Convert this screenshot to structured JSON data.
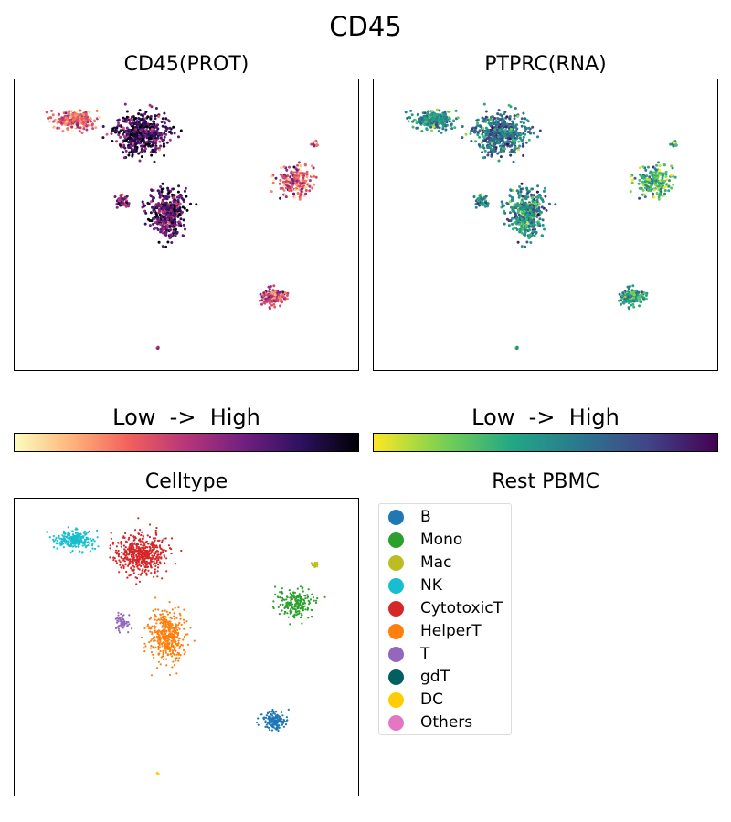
{
  "figure": {
    "title": "CD45"
  },
  "panels": {
    "prot": {
      "title": "CD45(PROT)",
      "colormap": "magma"
    },
    "rna": {
      "title": "PTPRC(RNA)",
      "colormap": "viridis"
    },
    "celltype": {
      "title": "Celltype"
    },
    "legend_title": "Rest PBMC"
  },
  "colorbars": {
    "prot": {
      "label": "Low  ->  High"
    },
    "rna": {
      "label": "Low  ->  High"
    }
  },
  "colors": {
    "B": "#1f77b4",
    "Mono": "#2ca02c",
    "Mac": "#bcbd22",
    "NK": "#17becf",
    "CytotoxicT": "#d62728",
    "HelperT": "#ff7f0e",
    "T": "#9467bd",
    "gdT": "#006060",
    "DC": "#ffcc00",
    "Others": "#e377c2"
  },
  "chart_data": [
    {
      "type": "scatter",
      "title": "CD45(PROT)",
      "xlabel": "",
      "ylabel": "",
      "grid": false,
      "color_scale": "magma",
      "clusters": [
        {
          "cell_type": "NK",
          "center": [
            1.5,
            8.9
          ],
          "spread": [
            0.55,
            0.32
          ],
          "count": 260,
          "expression_level": 0.35
        },
        {
          "cell_type": "CytotoxicT",
          "center": [
            3.6,
            8.4
          ],
          "spread": [
            0.75,
            0.7
          ],
          "count": 520,
          "expression_level": 0.8
        },
        {
          "cell_type": "T",
          "center": [
            3.0,
            5.9
          ],
          "spread": [
            0.2,
            0.3
          ],
          "count": 60,
          "expression_level": 0.6
        },
        {
          "cell_type": "HelperT",
          "center": [
            4.4,
            5.4
          ],
          "spread": [
            0.55,
            0.9
          ],
          "count": 420,
          "expression_level": 0.75
        },
        {
          "cell_type": "Mono",
          "center": [
            8.4,
            6.6
          ],
          "spread": [
            0.55,
            0.55
          ],
          "count": 200,
          "expression_level": 0.4
        },
        {
          "cell_type": "Mac",
          "center": [
            9.0,
            8.0
          ],
          "spread": [
            0.08,
            0.12
          ],
          "count": 18,
          "expression_level": 0.3
        },
        {
          "cell_type": "B",
          "center": [
            7.7,
            2.3
          ],
          "spread": [
            0.38,
            0.32
          ],
          "count": 150,
          "expression_level": 0.45
        },
        {
          "cell_type": "DC",
          "center": [
            4.1,
            0.4
          ],
          "spread": [
            0.04,
            0.05
          ],
          "count": 6,
          "expression_level": 0.4
        }
      ]
    },
    {
      "type": "scatter",
      "title": "PTPRC(RNA)",
      "xlabel": "",
      "ylabel": "",
      "grid": false,
      "color_scale": "viridis",
      "clusters": [
        {
          "cell_type": "NK",
          "center": [
            1.5,
            8.9
          ],
          "spread": [
            0.55,
            0.32
          ],
          "count": 260,
          "expression_level": 0.5
        },
        {
          "cell_type": "CytotoxicT",
          "center": [
            3.6,
            8.4
          ],
          "spread": [
            0.75,
            0.7
          ],
          "count": 520,
          "expression_level": 0.6
        },
        {
          "cell_type": "T",
          "center": [
            3.0,
            5.9
          ],
          "spread": [
            0.2,
            0.3
          ],
          "count": 60,
          "expression_level": 0.5
        },
        {
          "cell_type": "HelperT",
          "center": [
            4.4,
            5.4
          ],
          "spread": [
            0.55,
            0.9
          ],
          "count": 420,
          "expression_level": 0.5
        },
        {
          "cell_type": "Mono",
          "center": [
            8.4,
            6.6
          ],
          "spread": [
            0.55,
            0.55
          ],
          "count": 200,
          "expression_level": 0.35
        },
        {
          "cell_type": "Mac",
          "center": [
            9.0,
            8.0
          ],
          "spread": [
            0.08,
            0.12
          ],
          "count": 18,
          "expression_level": 0.3
        },
        {
          "cell_type": "B",
          "center": [
            7.7,
            2.3
          ],
          "spread": [
            0.38,
            0.32
          ],
          "count": 150,
          "expression_level": 0.45
        },
        {
          "cell_type": "DC",
          "center": [
            4.1,
            0.4
          ],
          "spread": [
            0.04,
            0.05
          ],
          "count": 6,
          "expression_level": 0.3
        }
      ]
    },
    {
      "type": "scatter",
      "title": "Celltype",
      "xlabel": "",
      "ylabel": "",
      "grid": false,
      "legend": {
        "title": "Rest PBMC",
        "position": "right",
        "entries": [
          "B",
          "Mono",
          "Mac",
          "NK",
          "CytotoxicT",
          "HelperT",
          "T",
          "gdT",
          "DC",
          "Others"
        ]
      },
      "clusters": [
        {
          "cell_type": "NK",
          "center": [
            1.5,
            8.9
          ],
          "spread": [
            0.55,
            0.32
          ],
          "count": 260
        },
        {
          "cell_type": "CytotoxicT",
          "center": [
            3.6,
            8.4
          ],
          "spread": [
            0.75,
            0.7
          ],
          "count": 520
        },
        {
          "cell_type": "T",
          "center": [
            3.0,
            5.9
          ],
          "spread": [
            0.2,
            0.3
          ],
          "count": 60
        },
        {
          "cell_type": "HelperT",
          "center": [
            4.4,
            5.4
          ],
          "spread": [
            0.55,
            0.9
          ],
          "count": 420
        },
        {
          "cell_type": "Mono",
          "center": [
            8.4,
            6.6
          ],
          "spread": [
            0.55,
            0.55
          ],
          "count": 200
        },
        {
          "cell_type": "Mac",
          "center": [
            9.0,
            8.0
          ],
          "spread": [
            0.08,
            0.12
          ],
          "count": 18
        },
        {
          "cell_type": "B",
          "center": [
            7.7,
            2.3
          ],
          "spread": [
            0.38,
            0.32
          ],
          "count": 150
        },
        {
          "cell_type": "DC",
          "center": [
            4.1,
            0.4
          ],
          "spread": [
            0.04,
            0.05
          ],
          "count": 6
        }
      ]
    }
  ]
}
